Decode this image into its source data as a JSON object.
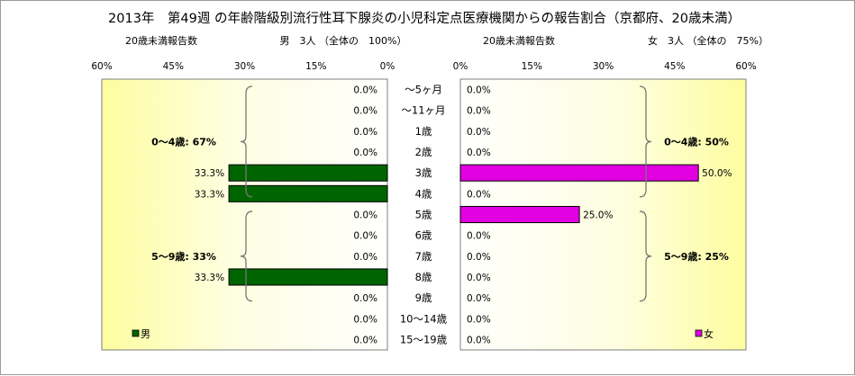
{
  "chart_data": {
    "type": "bar",
    "title": "2013年　第49週 の年齢階級別流行性耳下腺炎の小児科定点医療機関からの報告割合（京都府、20歳未満）",
    "categories": [
      "～5ヶ月",
      "～11ヶ月",
      "1歳",
      "2歳",
      "3歳",
      "4歳",
      "5歳",
      "6歳",
      "7歳",
      "8歳",
      "9歳",
      "10～14歳",
      "15～19歳"
    ],
    "xlim": [
      0,
      60
    ],
    "ticks": [
      "0%",
      "15%",
      "30%",
      "45%",
      "60%"
    ],
    "left_panel": {
      "subtitle_left": "20歳未満報告数",
      "subtitle_right": "男　3人 （全体の　100%）",
      "series": {
        "name": "男",
        "color": "#006400",
        "values": [
          0,
          0,
          0,
          0,
          33.3,
          33.3,
          0,
          0,
          0,
          33.3,
          0,
          0,
          0
        ],
        "labels": [
          "0.0%",
          "0.0%",
          "0.0%",
          "0.0%",
          "33.3%",
          "33.3%",
          "0.0%",
          "0.0%",
          "0.0%",
          "33.3%",
          "0.0%",
          "0.0%",
          "0.0%"
        ]
      },
      "groups": [
        {
          "label": "0～4歳: 67%",
          "from": 0,
          "to": 5
        },
        {
          "label": "5～9歳: 33%",
          "from": 6,
          "to": 10
        }
      ]
    },
    "right_panel": {
      "subtitle_left": "20歳未満報告数",
      "subtitle_right": "女　3人 （全体の　75%）",
      "series": {
        "name": "女",
        "color": "#e000e0",
        "values": [
          0,
          0,
          0,
          0,
          50,
          0,
          25,
          0,
          0,
          0,
          0,
          0,
          0
        ],
        "labels": [
          "0.0%",
          "0.0%",
          "0.0%",
          "0.0%",
          "50.0%",
          "0.0%",
          "25.0%",
          "0.0%",
          "0.0%",
          "0.0%",
          "0.0%",
          "0.0%",
          "0.0%"
        ]
      },
      "groups": [
        {
          "label": "0～4歳: 50%",
          "from": 0,
          "to": 5
        },
        {
          "label": "5～9歳: 25%",
          "from": 6,
          "to": 10
        }
      ]
    }
  }
}
